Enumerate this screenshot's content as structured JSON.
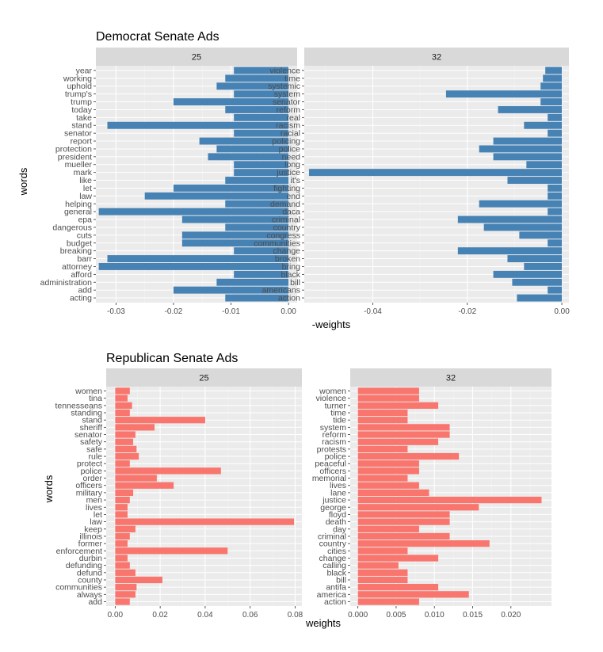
{
  "chart_data": [
    {
      "type": "bar",
      "orientation": "horizontal",
      "title": "Democrat Senate Ads",
      "ylabel": "words",
      "xlabel": "-weights",
      "bar_color": "#4682B4",
      "grid": true,
      "facets": [
        {
          "label": "25",
          "xlim": [
            -0.0335,
            0.0015
          ],
          "xticks": [
            {
              "value": -0.03,
              "label": "-0.03"
            },
            {
              "value": -0.02,
              "label": "-0.02"
            },
            {
              "value": -0.01,
              "label": "-0.01"
            },
            {
              "value": 0.0,
              "label": "0.00"
            }
          ],
          "categories": [
            "year",
            "working",
            "uphold",
            "trump's",
            "trump",
            "today",
            "take",
            "stand",
            "senator",
            "report",
            "protection",
            "president",
            "mueller",
            "mark",
            "like",
            "let",
            "law",
            "helping",
            "general",
            "epa",
            "dangerous",
            "cuts",
            "budget",
            "breaking",
            "barr",
            "attorney",
            "afford",
            "administration",
            "add",
            "acting"
          ],
          "values": [
            -0.0095,
            -0.011,
            -0.0125,
            -0.0095,
            -0.02,
            -0.011,
            -0.0095,
            -0.0315,
            -0.0095,
            -0.0155,
            -0.0125,
            -0.014,
            -0.0095,
            -0.0095,
            -0.011,
            -0.02,
            -0.025,
            -0.011,
            -0.033,
            -0.0185,
            -0.011,
            -0.0185,
            -0.0185,
            -0.0095,
            -0.0315,
            -0.033,
            -0.0095,
            -0.0125,
            -0.02,
            -0.011
          ]
        },
        {
          "label": "32",
          "xlim": [
            -0.0545,
            0.0015
          ],
          "xticks": [
            {
              "value": -0.04,
              "label": "-0.04"
            },
            {
              "value": -0.02,
              "label": "-0.02"
            },
            {
              "value": 0.0,
              "label": "0.00"
            }
          ],
          "categories": [
            "violence",
            "time",
            "systemic",
            "system",
            "senator",
            "reform",
            "real",
            "racism",
            "racial",
            "policing",
            "police",
            "need",
            "long",
            "justice",
            "it's",
            "fighting",
            "end",
            "demand",
            "daca",
            "criminal",
            "country",
            "congress",
            "communities",
            "change",
            "broken",
            "bring",
            "black",
            "bill",
            "americans",
            "action"
          ],
          "values": [
            -0.0035,
            -0.004,
            -0.0045,
            -0.0245,
            -0.0045,
            -0.0135,
            -0.003,
            -0.008,
            -0.003,
            -0.0145,
            -0.0175,
            -0.0145,
            -0.0075,
            -0.0535,
            -0.0115,
            -0.003,
            -0.003,
            -0.0175,
            -0.003,
            -0.022,
            -0.0165,
            -0.009,
            -0.003,
            -0.022,
            -0.0115,
            -0.008,
            -0.0145,
            -0.0105,
            -0.003,
            -0.0095
          ]
        }
      ]
    },
    {
      "type": "bar",
      "orientation": "horizontal",
      "title": "Republican Senate Ads",
      "ylabel": "words",
      "xlabel": "weights",
      "bar_color": "#F8766D",
      "grid": true,
      "facets": [
        {
          "label": "25",
          "xlim": [
            -0.004,
            0.083
          ],
          "xticks": [
            {
              "value": 0.0,
              "label": "0.00"
            },
            {
              "value": 0.02,
              "label": "0.02"
            },
            {
              "value": 0.04,
              "label": "0.04"
            },
            {
              "value": 0.06,
              "label": "0.06"
            },
            {
              "value": 0.08,
              "label": "0.08"
            }
          ],
          "categories": [
            "women",
            "tina",
            "tennesseans",
            "standing",
            "stand",
            "sheriff",
            "senator",
            "safety",
            "safe",
            "rule",
            "protect",
            "police",
            "order",
            "officers",
            "military",
            "men",
            "lives",
            "let",
            "law",
            "keep",
            "illinois",
            "former",
            "enforcement",
            "durbin",
            "defunding",
            "defund",
            "county",
            "communities",
            "always",
            "add"
          ],
          "values": [
            0.0065,
            0.0055,
            0.0075,
            0.0065,
            0.04,
            0.0175,
            0.009,
            0.008,
            0.0095,
            0.0105,
            0.0065,
            0.047,
            0.0185,
            0.026,
            0.008,
            0.0065,
            0.0055,
            0.0055,
            0.0795,
            0.009,
            0.0065,
            0.0055,
            0.05,
            0.0055,
            0.0065,
            0.009,
            0.021,
            0.0095,
            0.009,
            0.0065
          ]
        },
        {
          "label": "32",
          "xlim": [
            -0.001,
            0.0253
          ],
          "xticks": [
            {
              "value": 0.0,
              "label": "0.000"
            },
            {
              "value": 0.005,
              "label": "0.005"
            },
            {
              "value": 0.01,
              "label": "0.010"
            },
            {
              "value": 0.015,
              "label": "0.015"
            },
            {
              "value": 0.02,
              "label": "0.020"
            }
          ],
          "categories": [
            "women",
            "violence",
            "turner",
            "time",
            "tide",
            "system",
            "reform",
            "racism",
            "protests",
            "police",
            "peaceful",
            "officers",
            "memorial",
            "lives",
            "lane",
            "justice",
            "george",
            "floyd",
            "death",
            "day",
            "criminal",
            "country",
            "cities",
            "change",
            "calling",
            "black",
            "bill",
            "antifa",
            "america",
            "action"
          ],
          "values": [
            0.008,
            0.008,
            0.0105,
            0.0065,
            0.0065,
            0.012,
            0.012,
            0.0105,
            0.0065,
            0.0132,
            0.008,
            0.008,
            0.0065,
            0.008,
            0.0093,
            0.024,
            0.0158,
            0.012,
            0.012,
            0.008,
            0.012,
            0.0172,
            0.0065,
            0.0105,
            0.0053,
            0.0065,
            0.0065,
            0.0105,
            0.0145,
            0.008
          ]
        }
      ]
    }
  ]
}
